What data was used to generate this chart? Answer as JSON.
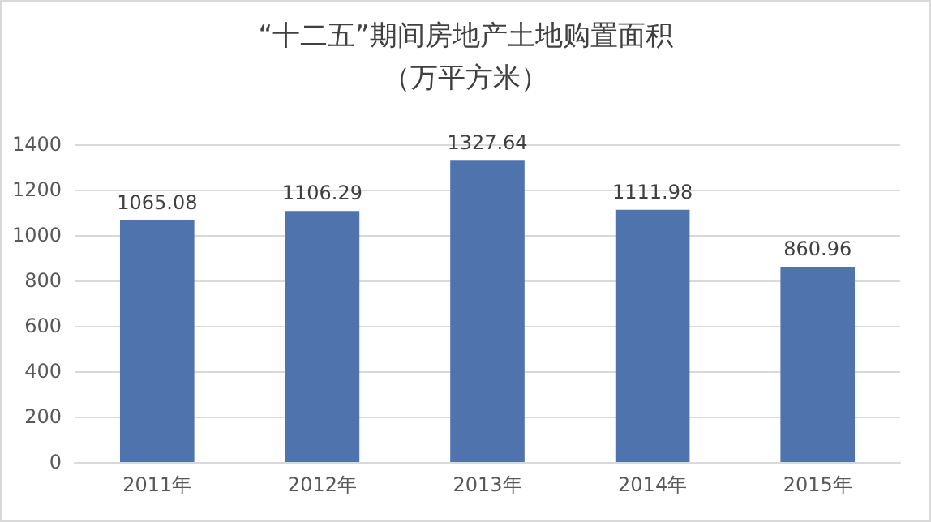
{
  "chart_data": {
    "type": "bar",
    "title": "“十二五”期间房地产土地购置面积",
    "subtitle": "（万平方米）",
    "categories": [
      "2011年",
      "2012年",
      "2013年",
      "2014年",
      "2015年"
    ],
    "values": [
      1065.08,
      1106.29,
      1327.64,
      1111.98,
      860.96
    ],
    "color": "#4f74ad",
    "ylim": [
      0,
      1400
    ],
    "yticks": [
      0,
      200,
      400,
      600,
      800,
      1000,
      1200,
      1400
    ],
    "grid": "y",
    "data_labels": true
  }
}
